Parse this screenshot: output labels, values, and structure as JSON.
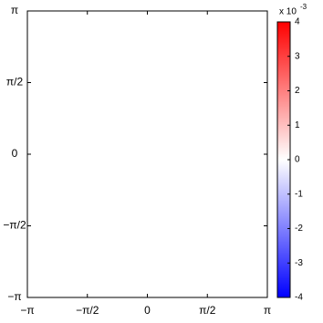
{
  "chart_data": {
    "type": "heatmap",
    "xlim": [
      -3.14159,
      3.14159
    ],
    "xticks": [
      {
        "value": -3.14159,
        "label": "−π"
      },
      {
        "value": -1.5708,
        "label": "−π/2"
      },
      0,
      {
        "value": 1.5708,
        "label": "π/2"
      },
      {
        "value": 3.14159,
        "label": "π"
      }
    ],
    "ylim": [
      -3.14159,
      3.14159
    ],
    "yticks": [
      {
        "value": -3.14159,
        "label": "−π"
      },
      {
        "value": -1.5708,
        "label": "−π/2"
      },
      0,
      {
        "value": 1.5708,
        "label": "π/2"
      },
      {
        "value": 3.14159,
        "label": "π"
      }
    ],
    "colorbar": {
      "lim": [
        -4,
        4
      ],
      "ticks": [
        -4,
        -3,
        -2,
        -1,
        0,
        1,
        2,
        3,
        4
      ],
      "label": "x 10",
      "exponent": "-3",
      "colormap": [
        "#0000ff",
        "#ffffff",
        "#ff0000"
      ]
    }
  }
}
